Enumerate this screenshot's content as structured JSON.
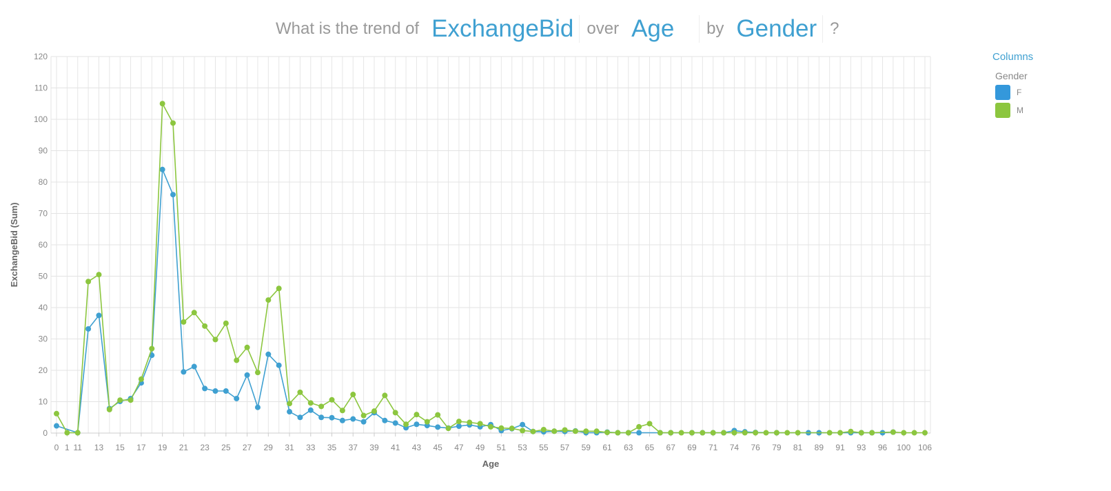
{
  "question": {
    "prefix": "What is the trend of",
    "field_measure": "ExchangeBid",
    "over_word": "over",
    "field_dimension": "Age",
    "by_word": "by",
    "field_group": "Gender",
    "suffix": "?"
  },
  "legend": {
    "title": "Columns",
    "subtitle": "Gender",
    "items": [
      {
        "label": "F",
        "color": "#3498db"
      },
      {
        "label": "M",
        "color": "#8cc63f"
      }
    ]
  },
  "chart_data": {
    "type": "line",
    "xlabel": "Age",
    "ylabel": "ExchangeBid (Sum)",
    "ylim": [
      0,
      120
    ],
    "yticks": [
      0,
      10,
      20,
      30,
      40,
      50,
      60,
      70,
      80,
      90,
      100,
      110,
      120
    ],
    "grid": true,
    "legend_position": "top-right",
    "x": [
      "0",
      "1",
      "11",
      "12",
      "13",
      "14",
      "15",
      "16",
      "17",
      "18",
      "19",
      "20",
      "21",
      "22",
      "23",
      "24",
      "25",
      "26",
      "27",
      "28",
      "29",
      "30",
      "31",
      "32",
      "33",
      "34",
      "35",
      "36",
      "37",
      "38",
      "39",
      "40",
      "41",
      "42",
      "43",
      "44",
      "45",
      "46",
      "47",
      "48",
      "49",
      "50",
      "51",
      "52",
      "53",
      "54",
      "55",
      "56",
      "57",
      "58",
      "59",
      "60",
      "61",
      "62",
      "63",
      "64",
      "65",
      "66",
      "67",
      "68",
      "69",
      "70",
      "71",
      "72",
      "74",
      "75",
      "76",
      "77",
      "79",
      "80",
      "81",
      "86",
      "89",
      "90",
      "91",
      "92",
      "93",
      "94",
      "96",
      "97",
      "100",
      "104",
      "106"
    ],
    "x_tick_labels": [
      "0",
      "1",
      "11",
      "13",
      "15",
      "17",
      "19",
      "21",
      "23",
      "25",
      "27",
      "29",
      "31",
      "33",
      "35",
      "37",
      "39",
      "41",
      "43",
      "45",
      "47",
      "49",
      "51",
      "53",
      "55",
      "57",
      "59",
      "61",
      "63",
      "65",
      "67",
      "69",
      "71",
      "74",
      "76",
      "79",
      "81",
      "89",
      "91",
      "93",
      "96",
      "100",
      "106"
    ],
    "series": [
      {
        "name": "F",
        "color": "#3fa0d1",
        "values": [
          2.3,
          null,
          0.1,
          33.2,
          37.5,
          7.8,
          10.1,
          11.0,
          16.0,
          24.8,
          84.0,
          76.0,
          19.5,
          21.2,
          14.2,
          13.4,
          13.4,
          11.0,
          18.5,
          8.2,
          25.1,
          21.6,
          6.8,
          5.0,
          7.3,
          5.0,
          4.9,
          4.0,
          4.5,
          3.6,
          6.5,
          4.0,
          3.2,
          1.7,
          2.8,
          2.4,
          1.9,
          1.6,
          2.2,
          2.6,
          2.0,
          2.7,
          0.8,
          1.4,
          2.7,
          0.5,
          0.4,
          0.6,
          0.5,
          0.7,
          0.1,
          0.1,
          0.3,
          0.1,
          0.1,
          0.1,
          null,
          0.1,
          0.1,
          null,
          0.1,
          0.1,
          0.1,
          0.1,
          0.8,
          0.4,
          0.2,
          null,
          0.1,
          null,
          null,
          0.1,
          0.1,
          null,
          null,
          0.1,
          0.1,
          0.1,
          0.1,
          0.3,
          null,
          null,
          null
        ]
      },
      {
        "name": "M",
        "color": "#8cc63f",
        "values": [
          6.2,
          0.1,
          0.1,
          48.3,
          50.5,
          7.5,
          10.5,
          10.5,
          17.2,
          26.9,
          105.0,
          98.8,
          35.4,
          38.4,
          34.1,
          29.8,
          35.0,
          23.2,
          27.3,
          19.3,
          42.4,
          46.1,
          9.4,
          13.0,
          9.6,
          8.5,
          10.6,
          7.2,
          12.3,
          5.6,
          7.0,
          12.0,
          6.5,
          2.8,
          5.9,
          3.6,
          5.8,
          1.5,
          3.7,
          3.4,
          3.0,
          2.0,
          1.6,
          1.5,
          0.8,
          0.5,
          1.1,
          0.6,
          1.0,
          0.6,
          0.6,
          0.6,
          0.2,
          0.1,
          0.1,
          2.0,
          3.0,
          0.1,
          0.1,
          0.1,
          0.1,
          0.1,
          0.1,
          0.1,
          0.1,
          0.1,
          0.1,
          0.1,
          0.1,
          0.1,
          0.1,
          null,
          null,
          0.1,
          0.1,
          0.5,
          0.1,
          0.1,
          null,
          0.3,
          0.1,
          0.1,
          0.1
        ]
      }
    ]
  }
}
